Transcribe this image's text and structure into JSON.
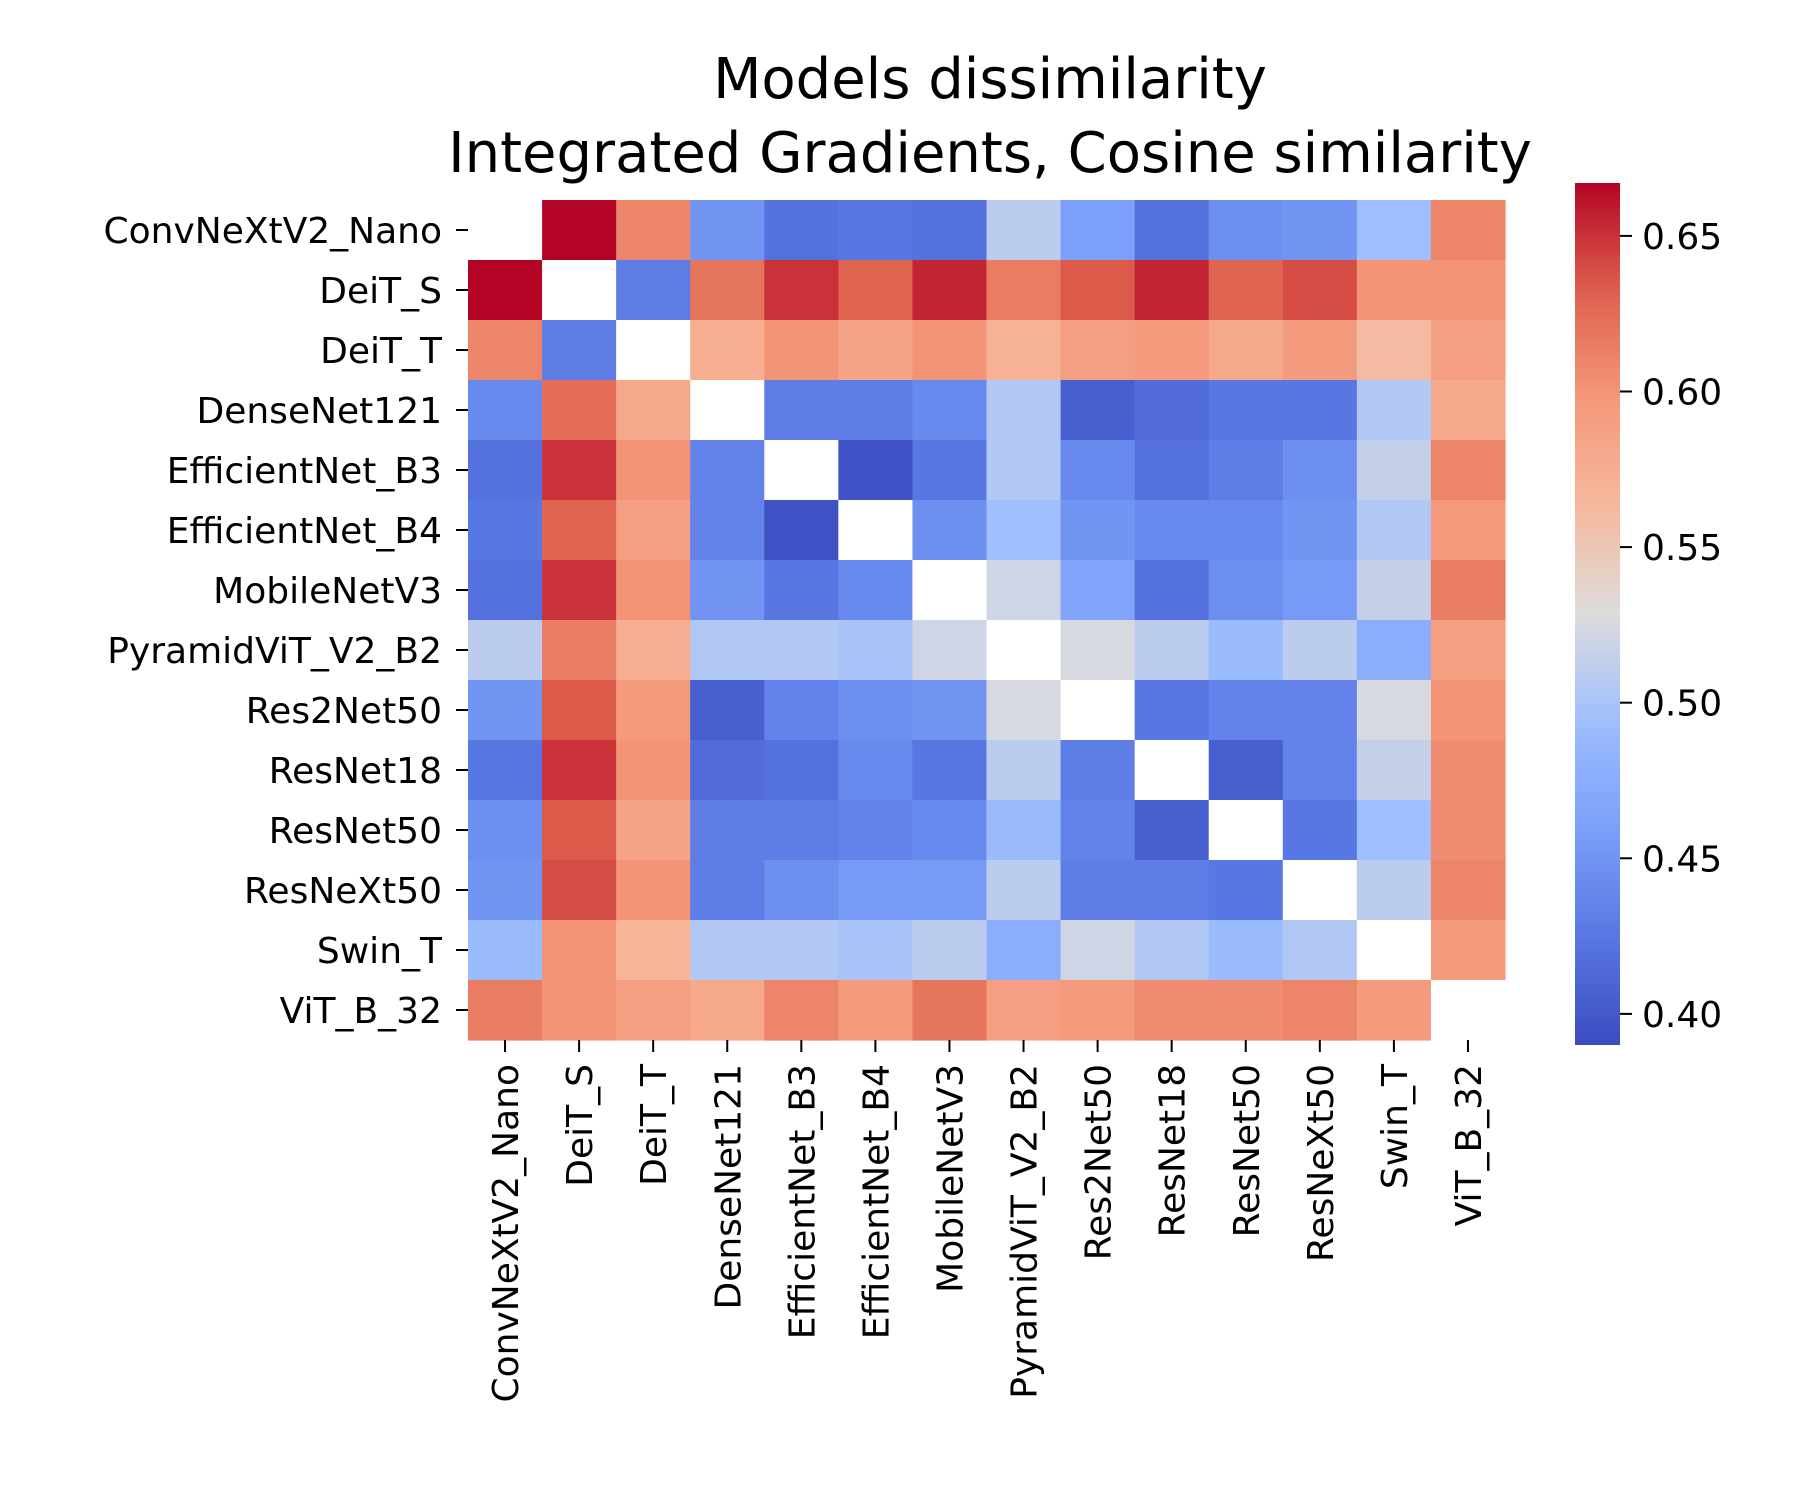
{
  "chart_data": {
    "type": "heatmap",
    "title_lines": [
      "Models dissimilarity",
      "Integrated Gradients, Cosine similarity"
    ],
    "labels": [
      "ConvNeXtV2_Nano",
      "DeiT_S",
      "DeiT_T",
      "DenseNet121",
      "EfficientNet_B3",
      "EfficientNet_B4",
      "MobileNetV3",
      "PyramidViT_V2_B2",
      "Res2Net50",
      "ResNet18",
      "ResNet50",
      "ResNeXt50",
      "Swin_T",
      "ViT_B_32"
    ],
    "values": [
      [
        null,
        0.667,
        0.61,
        0.45,
        0.42,
        0.425,
        0.42,
        0.51,
        0.46,
        0.42,
        0.445,
        0.45,
        0.495,
        0.61
      ],
      [
        0.667,
        null,
        0.43,
        0.62,
        0.65,
        0.63,
        0.655,
        0.615,
        0.635,
        0.655,
        0.63,
        0.64,
        0.6,
        0.6
      ],
      [
        0.61,
        0.43,
        null,
        0.575,
        0.6,
        0.585,
        0.6,
        0.57,
        0.59,
        0.595,
        0.58,
        0.595,
        0.56,
        0.59
      ],
      [
        0.44,
        0.625,
        0.58,
        null,
        0.43,
        0.43,
        0.44,
        0.505,
        0.405,
        0.415,
        0.425,
        0.425,
        0.505,
        0.58
      ],
      [
        0.42,
        0.65,
        0.6,
        0.435,
        null,
        0.395,
        0.425,
        0.505,
        0.44,
        0.42,
        0.43,
        0.445,
        0.515,
        0.61
      ],
      [
        0.425,
        0.63,
        0.59,
        0.435,
        0.395,
        null,
        0.445,
        0.495,
        0.45,
        0.44,
        0.44,
        0.45,
        0.505,
        0.595
      ],
      [
        0.42,
        0.65,
        0.6,
        0.45,
        0.425,
        0.44,
        null,
        0.52,
        0.465,
        0.42,
        0.445,
        0.455,
        0.515,
        0.615
      ],
      [
        0.51,
        0.615,
        0.575,
        0.505,
        0.505,
        0.5,
        0.52,
        null,
        0.525,
        0.51,
        0.49,
        0.51,
        0.475,
        0.59
      ],
      [
        0.45,
        0.635,
        0.595,
        0.405,
        0.435,
        0.445,
        0.45,
        0.525,
        null,
        0.425,
        0.435,
        0.435,
        0.525,
        0.6
      ],
      [
        0.425,
        0.65,
        0.6,
        0.415,
        0.42,
        0.44,
        0.425,
        0.51,
        0.43,
        null,
        0.405,
        0.435,
        0.515,
        0.605
      ],
      [
        0.445,
        0.635,
        0.585,
        0.43,
        0.43,
        0.435,
        0.44,
        0.49,
        0.435,
        0.405,
        null,
        0.425,
        0.495,
        0.605
      ],
      [
        0.45,
        0.64,
        0.6,
        0.43,
        0.445,
        0.455,
        0.455,
        0.51,
        0.43,
        0.43,
        0.425,
        null,
        0.51,
        0.61
      ],
      [
        0.49,
        0.6,
        0.565,
        0.505,
        0.505,
        0.5,
        0.51,
        0.475,
        0.52,
        0.505,
        0.49,
        0.505,
        null,
        0.595
      ],
      [
        0.615,
        0.6,
        0.59,
        0.58,
        0.61,
        0.595,
        0.62,
        0.59,
        0.595,
        0.605,
        0.605,
        0.61,
        0.595,
        null
      ]
    ],
    "colormap": "coolwarm",
    "vmin": 0.39,
    "vmax": 0.667,
    "colorbar_ticks": [
      "0.40",
      "0.45",
      "0.50",
      "0.55",
      "0.60",
      "0.65"
    ],
    "colors": {
      "cool": "#3b4cc0",
      "neutral": "#dddcdc",
      "warm": "#b40426"
    }
  }
}
